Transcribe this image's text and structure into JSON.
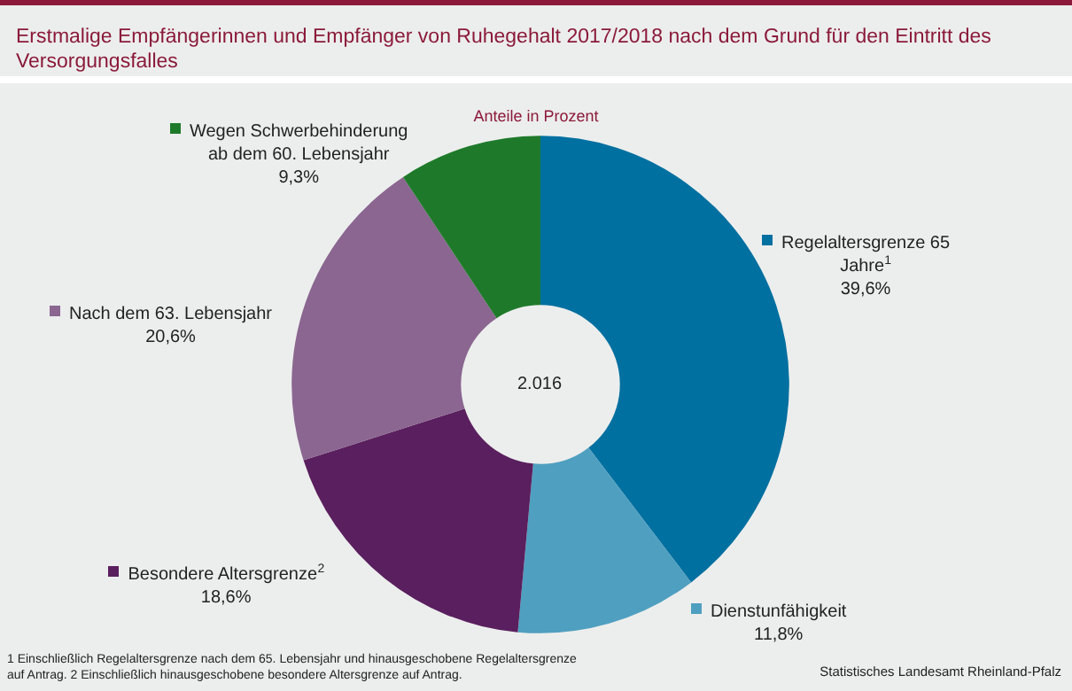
{
  "chart_data": {
    "type": "donut",
    "title": "Erstmalige Empfängerinnen und Empfänger von Ruhegehalt 2017/2018 nach dem Grund für den Eintritt des Versorgungsfalles",
    "subtitle": "Anteile in Prozent",
    "categories": [
      "Regelaltersgrenze 65 Jahre$^{1}$",
      "Dienstunfähigkeit",
      "Besondere Altersgrenze$^{2}$",
      "Nach dem 63. Lebensjahr",
      "Wegen Schwerbehinderung ab dem 60. Lebensjahr"
    ],
    "values": [
      39.6,
      11.8,
      18.6,
      20.6,
      9.3
    ],
    "value_labels": [
      "39,6%",
      "11,8%",
      "18,6%",
      "20,6%",
      "9,3%"
    ],
    "colors": [
      "#0070a0",
      "#4f9fc0",
      "#5a1f5e",
      "#8a6690",
      "#1e7a2a"
    ],
    "annotations": [
      "2.016",
      "1 Einschließlich Regelaltersgrenze nach dem 65. Lebensjahr und hinausgeschobene Regelaltersgrenze auf Antrag. 2 Einschließlich hinausgeschobene besondere Altersgrenze auf Antrag.",
      "Statistisches Landesamt Rheinland-Pfalz"
    ],
    "legend": "left"
  }
}
